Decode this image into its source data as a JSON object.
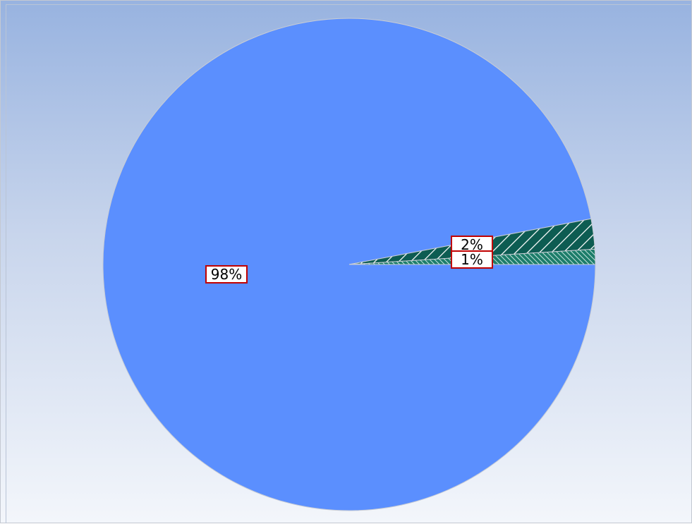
{
  "chart_data": {
    "type": "pie",
    "title": "",
    "slices": [
      {
        "value": 98,
        "label": "98%",
        "color": "#5b8ffe",
        "pattern": "solid"
      },
      {
        "value": 2,
        "label": "2%",
        "color": "#0d5c52",
        "pattern": "diagonal-hatch"
      },
      {
        "value": 1,
        "label": "1%",
        "color": "#3f9e8a",
        "pattern": "fine-hatch"
      }
    ],
    "legend": "none",
    "label_border_color": "#c00000",
    "background": [
      "#98b3e0",
      "#f3f6fb"
    ]
  }
}
